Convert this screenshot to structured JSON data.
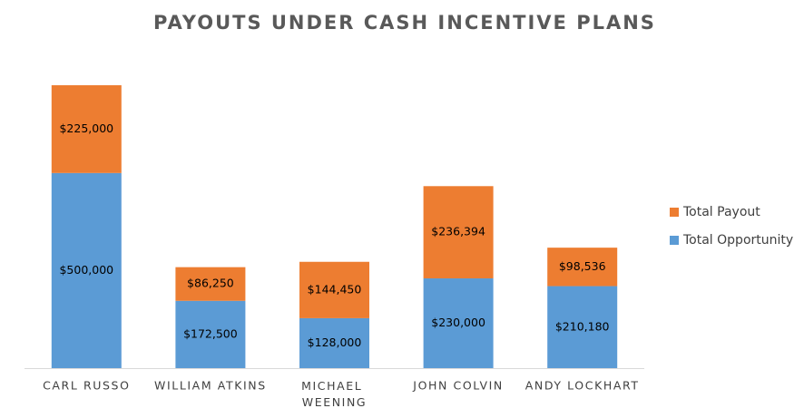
{
  "chart_data": {
    "type": "stacked_bar",
    "title": "PAYOUTS UNDER CASH INCENTIVE PLANS",
    "categories": [
      "CARL RUSSO",
      "WILLIAM ATKINS",
      "MICHAEL WEENING",
      "JOHN COLVIN",
      "ANDY LOCKHART"
    ],
    "series": [
      {
        "name": "Total Opportunity",
        "color": "#5b9bd5",
        "values": [
          500000,
          172500,
          128000,
          230000,
          210180
        ],
        "value_labels": [
          "$500,000",
          "$172,500",
          "$128,000",
          "$230,000",
          "$210,180"
        ]
      },
      {
        "name": "Total Payout",
        "color": "#ed7d31",
        "values": [
          225000,
          86250,
          144450,
          236394,
          98536
        ],
        "value_labels": [
          "$225,000",
          "$86,250",
          "$144,450",
          "$236,394",
          "$98,536"
        ]
      }
    ],
    "legend": "right"
  }
}
